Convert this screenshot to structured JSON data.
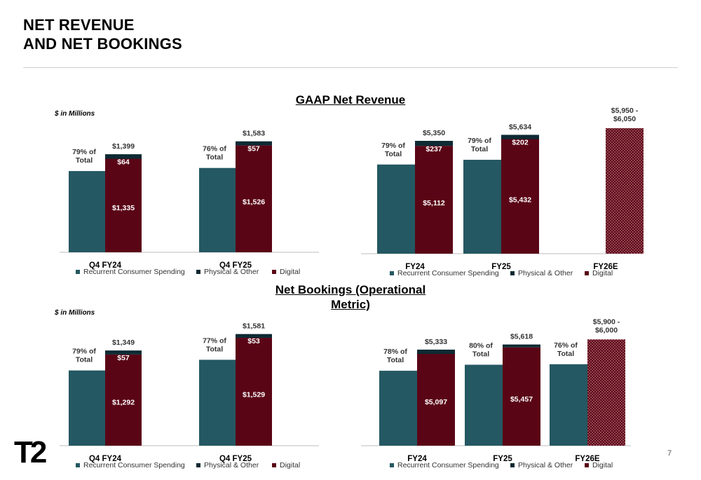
{
  "header": {
    "title_line1": "NET REVENUE",
    "title_line2": "AND NET BOOKINGS"
  },
  "sections": {
    "revenue_title": "GAAP Net Revenue",
    "bookings_title_line1": "Net Bookings (Operational",
    "bookings_title_line2": "Metric)",
    "units_label": "$ in Millions"
  },
  "footer": {
    "logo_text": "T2",
    "page_number": "7"
  },
  "colors": {
    "recurrent": "#245862",
    "physical": "#0d2a33",
    "digital": "#5a0516",
    "estimate_dot": "#e7a2ac"
  },
  "legend": [
    {
      "label": "Recurrent Consumer Spending",
      "color": "#245862"
    },
    {
      "label": "Physical & Other",
      "color": "#0d2a33"
    },
    {
      "label": "Digital",
      "color": "#5a0516"
    }
  ],
  "chart_data": [
    {
      "type": "bar",
      "name": "GAAP Net Revenue - Quarterly",
      "categories": [
        "Q4 FY24",
        "Q4 FY25"
      ],
      "recurrent_pct_labels": [
        "79% of Total",
        "76% of Total"
      ],
      "recurrent_values": [
        1159,
        1203
      ],
      "digital": [
        1335,
        1526
      ],
      "physical": [
        64,
        57
      ],
      "total_labels": [
        "$1,399",
        "$1,583"
      ],
      "digital_labels": [
        "$1,335",
        "$1,526"
      ],
      "physical_labels": [
        "$64",
        "$57"
      ]
    },
    {
      "type": "bar",
      "name": "GAAP Net Revenue - Annual",
      "categories": [
        "FY24",
        "FY25",
        "FY26E"
      ],
      "recurrent_pct_labels": [
        "79% of Total",
        "79% of Total",
        ""
      ],
      "recurrent_values": [
        4227,
        4451,
        null
      ],
      "digital": [
        5112,
        5432,
        null
      ],
      "physical": [
        237,
        202,
        null
      ],
      "total_labels": [
        "$5,350",
        "$5,634",
        "$5,950 -\n$6,050"
      ],
      "digital_labels": [
        "$5,112",
        "$5,432",
        ""
      ],
      "physical_labels": [
        "$237",
        "$202",
        ""
      ],
      "estimate": {
        "category": "FY26E",
        "low": 5950,
        "high": 6050
      }
    },
    {
      "type": "bar",
      "name": "Net Bookings - Quarterly",
      "categories": [
        "Q4 FY24",
        "Q4 FY25"
      ],
      "recurrent_pct_labels": [
        "79% of Total",
        "77% of Total"
      ],
      "recurrent_values": [
        1066,
        1217
      ],
      "digital": [
        1292,
        1529
      ],
      "physical": [
        57,
        53
      ],
      "total_labels": [
        "$1,349",
        "$1,581"
      ],
      "digital_labels": [
        "$1,292",
        "$1,529"
      ],
      "physical_labels": [
        "$57",
        "$53"
      ]
    },
    {
      "type": "bar",
      "name": "Net Bookings - Annual",
      "categories": [
        "FY24",
        "FY25",
        "FY26E"
      ],
      "recurrent_pct_labels": [
        "78% of Total",
        "80% of Total",
        "76% of Total"
      ],
      "recurrent_values": [
        4160,
        4494,
        4522
      ],
      "digital": [
        5097,
        5457,
        null
      ],
      "physical": [
        236,
        161,
        null
      ],
      "total_labels": [
        "$5,333",
        "$5,618",
        "$5,900 -\n$6,000"
      ],
      "digital_labels": [
        "$5,097",
        "$5,457",
        ""
      ],
      "physical_labels": [
        "",
        "",
        ""
      ],
      "estimate": {
        "category": "FY26E",
        "low": 5900,
        "high": 6000
      }
    }
  ]
}
